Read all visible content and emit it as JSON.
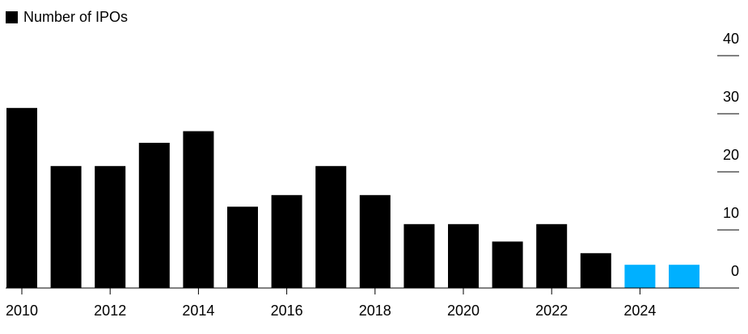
{
  "chart_data": {
    "type": "bar",
    "legend": "Number of IPOs",
    "categories": [
      "2010",
      null,
      "2012",
      null,
      "2014",
      null,
      "2016",
      null,
      "2018",
      null,
      "2020",
      null,
      "2022",
      null,
      "2024",
      null
    ],
    "values": [
      31,
      21,
      21,
      25,
      27,
      14,
      16,
      21,
      16,
      11,
      11,
      8,
      11,
      6,
      4,
      4
    ],
    "colors": [
      "#000000",
      "#000000",
      "#000000",
      "#000000",
      "#000000",
      "#000000",
      "#000000",
      "#000000",
      "#000000",
      "#000000",
      "#000000",
      "#000000",
      "#000000",
      "#000000",
      "#00b0ff",
      "#00b0ff"
    ],
    "legend_color": "#000000",
    "ylim": [
      0,
      40
    ],
    "yticks": [
      0,
      10,
      20,
      30,
      40
    ]
  }
}
